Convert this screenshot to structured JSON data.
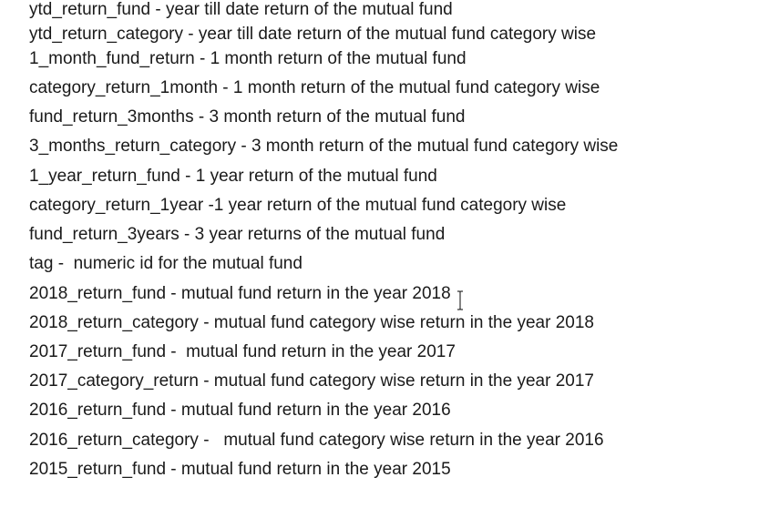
{
  "lines": [
    "ytd_return_fund - year till date return of the mutual fund",
    "ytd_return_category - year till date return of the mutual fund category wise",
    "1_month_fund_return - 1 month return of the mutual fund",
    "category_return_1month - 1 month return of the mutual fund category wise",
    "fund_return_3months - 3 month return of the mutual fund",
    "3_months_return_category - 3 month return of the mutual fund category wise",
    "1_year_return_fund - 1 year return of the mutual fund",
    "category_return_1year -1 year return of the mutual fund category wise",
    "fund_return_3years - 3 year returns of the mutual fund",
    "tag -  numeric id for the mutual fund",
    "2018_return_fund - mutual fund return in the year 2018",
    "2018_return_category - mutual fund category wise return in the year 2018",
    "2017_return_fund -  mutual fund return in the year 2017",
    "2017_category_return - mutual fund category wise return in the year 2017",
    "2016_return_fund - mutual fund return in the year 2016",
    "2016_return_category -   mutual fund category wise return in the year 2016",
    "2015_return_fund - mutual fund return in the year 2015"
  ],
  "colors": {
    "background": "#ffffff",
    "text": "#1a1a1a"
  },
  "icons": {
    "cursor": "text-cursor-icon"
  }
}
